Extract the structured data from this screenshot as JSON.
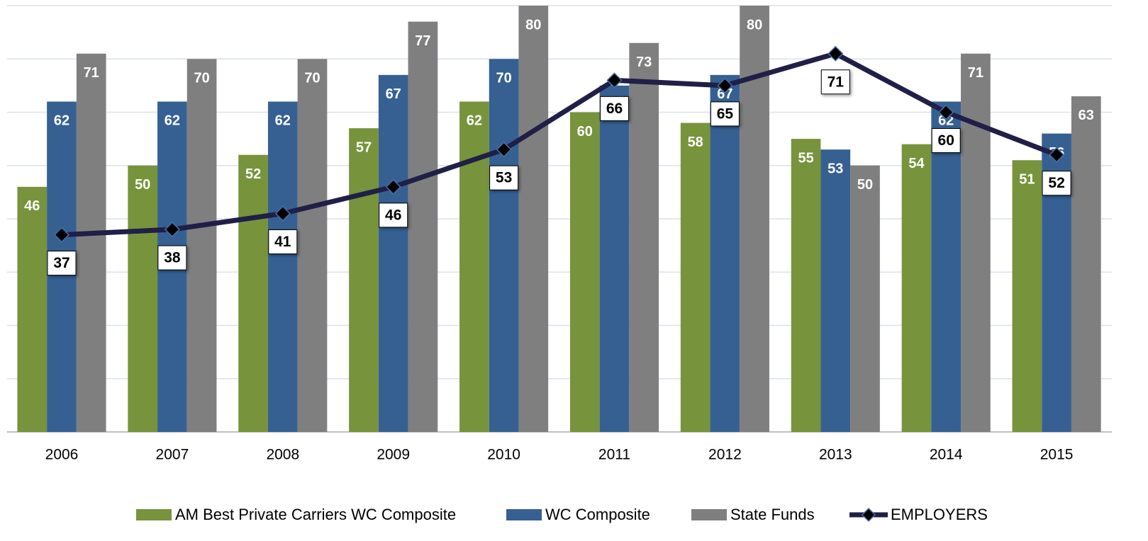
{
  "chart_data": {
    "type": "bar",
    "categories": [
      "2006",
      "2007",
      "2008",
      "2009",
      "2010",
      "2011",
      "2012",
      "2013",
      "2014",
      "2015"
    ],
    "series": [
      {
        "name": "AM Best Private Carriers WC Composite",
        "color": "#77933c",
        "values": [
          46,
          50,
          52,
          57,
          62,
          60,
          58,
          55,
          54,
          51
        ]
      },
      {
        "name": "WC Composite",
        "color": "#366092",
        "values": [
          62,
          62,
          62,
          67,
          70,
          65,
          67,
          53,
          62,
          56
        ]
      },
      {
        "name": "State Funds",
        "color": "#7f7f7f",
        "values": [
          71,
          70,
          70,
          77,
          80,
          73,
          80,
          50,
          71,
          63
        ]
      },
      {
        "name": "EMPLOYERS",
        "color": "#1f1f47",
        "type": "line",
        "values": [
          37,
          38,
          41,
          46,
          53,
          66,
          65,
          71,
          60,
          52
        ]
      }
    ],
    "ylim": [
      0,
      80
    ],
    "yticks": [
      0,
      10,
      20,
      30,
      40,
      50,
      60,
      70,
      80
    ],
    "grid": true,
    "legend": "bottom"
  }
}
